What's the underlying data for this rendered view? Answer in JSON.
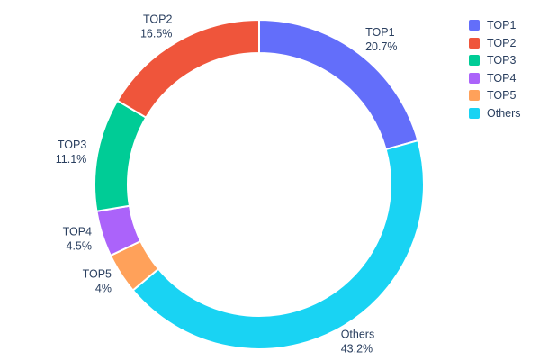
{
  "chart_data": {
    "type": "pie",
    "subtype": "donut",
    "title": "",
    "hole": 0.8,
    "legend_position": "right",
    "text_color": "#2a3f5f",
    "series": [
      {
        "label": "TOP1",
        "value": 20.7,
        "pct_label": "20.7%",
        "color": "#636EFA"
      },
      {
        "label": "TOP2",
        "value": 16.5,
        "pct_label": "16.5%",
        "color": "#EF553B"
      },
      {
        "label": "TOP3",
        "value": 11.1,
        "pct_label": "11.1%",
        "color": "#00CC96"
      },
      {
        "label": "TOP4",
        "value": 4.5,
        "pct_label": "4.5%",
        "color": "#AB63FA"
      },
      {
        "label": "TOP5",
        "value": 4.0,
        "pct_label": "4%",
        "color": "#FFA15A"
      },
      {
        "label": "Others",
        "value": 43.2,
        "pct_label": "43.2%",
        "color": "#19D3F3"
      }
    ],
    "display_order_clockwise_from_top": [
      "TOP1",
      "Others",
      "TOP5",
      "TOP4",
      "TOP3",
      "TOP2"
    ],
    "legend_entries": [
      "TOP1",
      "TOP2",
      "TOP3",
      "TOP4",
      "TOP5",
      "Others"
    ]
  }
}
